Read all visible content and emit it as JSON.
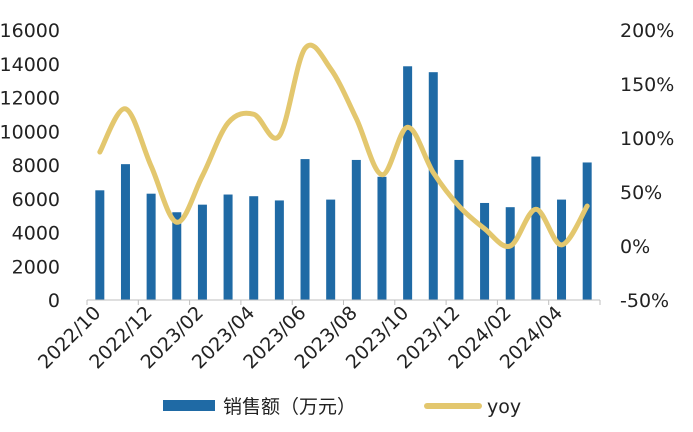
{
  "chart_data": {
    "type": "bar",
    "categories": [
      "2022/10",
      "2022/11",
      "2022/12",
      "2023/01",
      "2023/02",
      "2023/03",
      "2023/04",
      "2023/05",
      "2023/06",
      "2023/07",
      "2023/08",
      "2023/09",
      "2023/10",
      "2023/11",
      "2023/12",
      "2024/01",
      "2024/02",
      "2024/03",
      "2024/04",
      "2024/05"
    ],
    "x_tick_labels": [
      "2022/10",
      "2022/12",
      "2023/02",
      "2023/04",
      "2023/06",
      "2023/08",
      "2023/10",
      "2023/12",
      "2024/02",
      "2024/04"
    ],
    "series": [
      {
        "name": "销售额（万元）",
        "type": "bar",
        "axis": "left",
        "color": "#1f6aa5",
        "values": [
          6500,
          8050,
          6300,
          5200,
          5650,
          6250,
          6150,
          5900,
          8350,
          5950,
          8300,
          7300,
          13850,
          13500,
          8300,
          5750,
          5500,
          8500,
          5950,
          8150
        ]
      },
      {
        "name": "yoy",
        "type": "line",
        "axis": "right",
        "color": "#e3c76e",
        "values": [
          87,
          127,
          74,
          22,
          65,
          114,
          122,
          102,
          183,
          164,
          118,
          66,
          110,
          68,
          37,
          16,
          0,
          34,
          1,
          37
        ]
      }
    ],
    "y_left": {
      "min": 0,
      "max": 16000,
      "ticks": [
        "0",
        "2000",
        "4000",
        "6000",
        "8000",
        "10000",
        "12000",
        "14000",
        "16000"
      ]
    },
    "y_right": {
      "min": -50,
      "max": 200,
      "ticks": [
        "-50%",
        "0%",
        "50%",
        "100%",
        "150%",
        "200%"
      ]
    },
    "legend_position": "bottom",
    "grid": false
  }
}
